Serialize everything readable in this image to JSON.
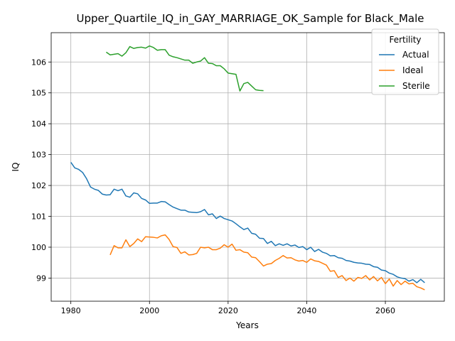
{
  "chart_data": {
    "type": "line",
    "title": "Upper_Quartile_IQ_in_GAY_MARRIAGE_OK_Sample for Black_Male",
    "xlabel": "Years",
    "ylabel": "IQ",
    "xlim": [
      1975,
      2075
    ],
    "ylim": [
      98.25,
      106.95
    ],
    "xticks": [
      1980,
      2000,
      2020,
      2040,
      2060
    ],
    "yticks": [
      99,
      100,
      101,
      102,
      103,
      104,
      105,
      106
    ],
    "grid": true,
    "legend": {
      "title": "Fertility",
      "placement": "top-right"
    },
    "series": [
      {
        "name": "Actual",
        "color": "#1f77b4",
        "start_year": 1980,
        "values": [
          102.75,
          102.57,
          102.52,
          102.42,
          102.22,
          101.95,
          101.88,
          101.84,
          101.72,
          101.69,
          101.7,
          101.88,
          101.83,
          101.88,
          101.66,
          101.62,
          101.76,
          101.73,
          101.58,
          101.53,
          101.42,
          101.43,
          101.43,
          101.48,
          101.47,
          101.38,
          101.3,
          101.25,
          101.2,
          101.2,
          101.14,
          101.13,
          101.12,
          101.15,
          101.22,
          101.05,
          101.08,
          100.93,
          101.01,
          100.93,
          100.89,
          100.85,
          100.76,
          100.66,
          100.57,
          100.62,
          100.45,
          100.42,
          100.29,
          100.28,
          100.12,
          100.19,
          100.05,
          100.11,
          100.06,
          100.11,
          100.04,
          100.07,
          99.99,
          100.02,
          99.92,
          100.0,
          99.86,
          99.93,
          99.84,
          99.8,
          99.72,
          99.73,
          99.66,
          99.64,
          99.57,
          99.55,
          99.51,
          99.49,
          99.48,
          99.45,
          99.44,
          99.37,
          99.35,
          99.26,
          99.24,
          99.16,
          99.12,
          99.04,
          99.0,
          98.98,
          98.9,
          98.95,
          98.85,
          98.96,
          98.85
        ]
      },
      {
        "name": "Ideal",
        "color": "#ff7f0e",
        "start_year": 1990,
        "values": [
          99.75,
          100.05,
          99.98,
          99.98,
          100.24,
          100.02,
          100.12,
          100.27,
          100.18,
          100.34,
          100.33,
          100.32,
          100.3,
          100.37,
          100.4,
          100.25,
          100.02,
          99.99,
          99.8,
          99.85,
          99.75,
          99.76,
          99.8,
          100.0,
          99.98,
          100.0,
          99.92,
          99.92,
          99.97,
          100.08,
          100.0,
          100.1,
          99.9,
          99.92,
          99.84,
          99.82,
          99.68,
          99.66,
          99.53,
          99.39,
          99.45,
          99.47,
          99.57,
          99.64,
          99.73,
          99.65,
          99.66,
          99.59,
          99.55,
          99.57,
          99.51,
          99.62,
          99.56,
          99.54,
          99.48,
          99.42,
          99.22,
          99.24,
          99.02,
          99.08,
          98.92,
          99.0,
          98.9,
          99.02,
          98.99,
          99.08,
          98.94,
          99.05,
          98.91,
          99.02,
          98.82,
          98.97,
          98.74,
          98.92,
          98.79,
          98.9,
          98.81,
          98.83,
          98.72,
          98.68,
          98.62
        ]
      },
      {
        "name": "Sterile",
        "color": "#2ca02c",
        "start_year": 1989,
        "values": [
          106.32,
          106.23,
          106.25,
          106.27,
          106.19,
          106.3,
          106.5,
          106.44,
          106.47,
          106.48,
          106.45,
          106.52,
          106.47,
          106.38,
          106.4,
          106.4,
          106.22,
          106.17,
          106.14,
          106.1,
          106.06,
          106.06,
          105.96,
          106.0,
          106.03,
          106.14,
          105.96,
          105.95,
          105.88,
          105.88,
          105.78,
          105.64,
          105.62,
          105.6,
          105.06,
          105.3,
          105.34,
          105.22,
          105.1,
          105.08,
          105.07
        ]
      }
    ]
  }
}
